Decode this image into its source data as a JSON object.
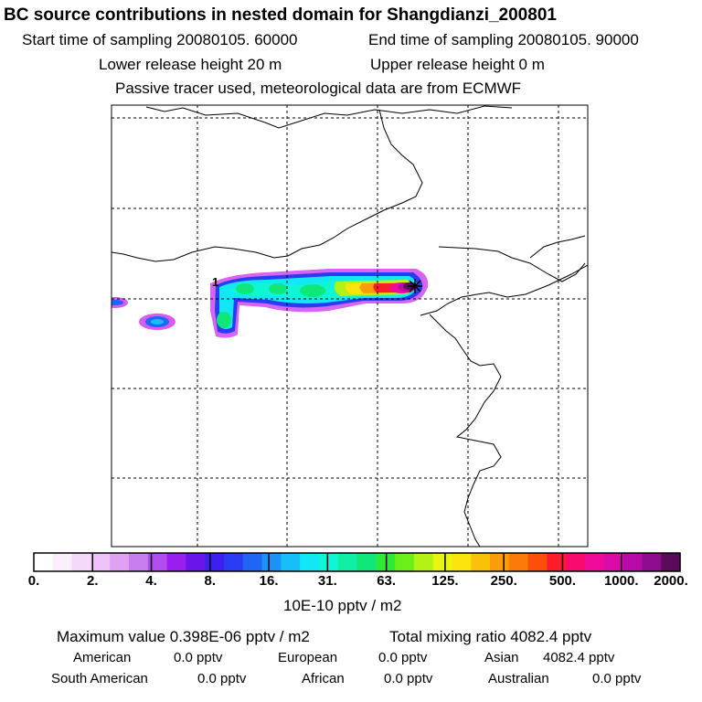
{
  "header": {
    "title": "BC  source contributions in nested domain for Shangdianzi_200801",
    "start_label": "Start time of sampling 20080105. 60000",
    "end_label": "End time of sampling 20080105. 90000",
    "lower_label": "Lower release height   20 m",
    "upper_label": "Upper release height    0 m",
    "tracer_label": "Passive tracer used, meteorological data are from ECMWF"
  },
  "map": {
    "receptor_label": "1",
    "station_marker": "receptor-star"
  },
  "colorbar": {
    "tick_labels": [
      "0.",
      "2.",
      "4.",
      "8.",
      "16.",
      "31.",
      "63.",
      "125.",
      "250.",
      "500.",
      "1000.",
      "2000."
    ],
    "unit_label": "10E-10 pptv / m2",
    "colors": [
      "#ffffff",
      "#fbeefd",
      "#f5d9fb",
      "#efc3f9",
      "#e0a0f3",
      "#c97ef0",
      "#b34cf0",
      "#9a1fee",
      "#6a16ea",
      "#3d1ff0",
      "#2a3cf2",
      "#1f66f4",
      "#1a93f6",
      "#16bff8",
      "#12e8f5",
      "#10f5d6",
      "#0ff0a5",
      "#0fe878",
      "#2ee83a",
      "#6bef1a",
      "#b0f314",
      "#e8f50f",
      "#fbe40c",
      "#fbc10a",
      "#fb9d09",
      "#fb7a08",
      "#fb4f0b",
      "#fb1e2a",
      "#fa0a6e",
      "#f00a9a",
      "#d80aa8",
      "#b80aa6",
      "#8e0a8e",
      "#5c0a5c"
    ]
  },
  "summary": {
    "max_label": "Maximum value  0.398E-06 pptv / m2",
    "total_label": "Total mixing ratio      4082.4 pptv",
    "american_label": "American",
    "american_value": "0.0 pptv",
    "european_label": "European",
    "european_value": "0.0 pptv",
    "asian_label": "Asian",
    "asian_value": "4082.4 pptv",
    "south_american_label": "South American",
    "south_american_value": "0.0 pptv",
    "african_label": "African",
    "african_value": "0.0 pptv",
    "australian_label": "Australian",
    "australian_value": "0.0 pptv"
  }
}
